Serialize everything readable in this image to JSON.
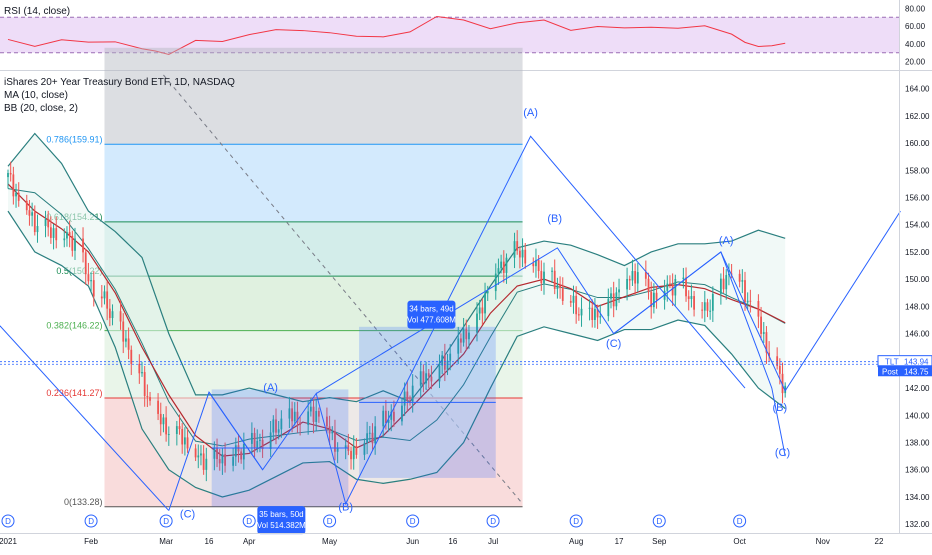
{
  "rsi_pane": {
    "title": "RSI (14, close)",
    "ticks": [
      "80.00",
      "60.00",
      "40.00",
      "20.00"
    ],
    "tick_values": [
      80,
      60,
      40,
      20
    ],
    "upper_band": 70,
    "lower_band": 30,
    "line_color": "#f23645",
    "band_fill": "#e3c7f3"
  },
  "main_pane": {
    "legend": [
      "iShares 20+ Year Treasury Bond ETF, 1D, NASDAQ",
      "MA (10, close)",
      "BB (20, close, 2)"
    ],
    "price_ticks": [
      "164.00",
      "162.00",
      "160.00",
      "158.00",
      "156.00",
      "154.00",
      "152.00",
      "150.00",
      "148.00",
      "146.00",
      "144.00",
      "142.00",
      "140.00",
      "138.00",
      "136.00",
      "134.00",
      "132.00"
    ],
    "price_tick_values": [
      164,
      162,
      160,
      158,
      156,
      154,
      152,
      150,
      148,
      146,
      144,
      142,
      140,
      138,
      136,
      134,
      132
    ],
    "date_ticks": [
      "2021",
      "Feb",
      "Mar",
      "16",
      "Apr",
      "May",
      "Jun",
      "16",
      "Jul",
      "Aug",
      "17",
      "Sep",
      "Oct",
      "Nov",
      "22"
    ],
    "last_price_badge": {
      "label": "TLT",
      "value": "143.94",
      "color": "#2962ff"
    },
    "post_badge": {
      "label": "Post",
      "value": "143.75",
      "color": "#2962ff"
    },
    "colors": {
      "up": "#26a69a",
      "down": "#ef5350",
      "ma": "#b5292f",
      "bb": "#2a7f7f",
      "bb_fill": "#e6f4f1",
      "drawing": "#2962ff",
      "wave_label": "#2962ff"
    }
  },
  "fibonacci": {
    "levels": [
      {
        "label": "0.786(159.91)",
        "ratio": 0.786,
        "price": 159.91,
        "color": "#2196f3"
      },
      {
        "label": "0.618(154.21)",
        "ratio": 0.618,
        "price": 154.21,
        "color": "#1b8d54"
      },
      {
        "label": "0.5(150.22)",
        "ratio": 0.5,
        "price": 150.22,
        "color": "#1b8d54"
      },
      {
        "label": "0.382(146.22)",
        "ratio": 0.382,
        "price": 146.22,
        "color": "#4caf50"
      },
      {
        "label": "0.236(141.27)",
        "ratio": 0.236,
        "price": 141.27,
        "color": "#e53935"
      },
      {
        "label": "0(133.28)",
        "ratio": 0,
        "price": 133.28,
        "color": "#555555"
      }
    ],
    "top_price": 167.0
  },
  "measure_boxes": [
    {
      "line1": "35 bars, 50d",
      "line2": "Vol 514.382M"
    },
    {
      "line1": "34 bars, 49d",
      "line2": "Vol 477.608M"
    }
  ],
  "wave_labels": [
    "(A)",
    "(B)",
    "(C)",
    "(A)",
    "(B)",
    "(C)",
    "(A)",
    "(B)",
    "(C)",
    "(B)",
    "(C)"
  ],
  "dividend_marker": "D",
  "chart_data": {
    "type": "candlestick",
    "ylim": [
      131.5,
      165.0
    ],
    "x_range_days": [
      -2,
      356
    ],
    "date_axis": {
      "labels": [
        "2021",
        "Feb",
        "Mar",
        "16",
        "Apr",
        "May",
        "Jun",
        "16",
        "Jul",
        "Aug",
        "17",
        "Sep",
        "Oct",
        "Nov",
        "22"
      ],
      "day_of_year": [
        0,
        31,
        59,
        75,
        90,
        120,
        151,
        166,
        181,
        212,
        228,
        243,
        273,
        304,
        325
      ]
    },
    "close_series": {
      "x": [
        0,
        5,
        10,
        15,
        20,
        25,
        30,
        35,
        40,
        45,
        50,
        55,
        60,
        65,
        70,
        75,
        80,
        85,
        90,
        95,
        100,
        105,
        110,
        115,
        120,
        125,
        130,
        135,
        140,
        145,
        150,
        155,
        160,
        165,
        170,
        175,
        180,
        185,
        190,
        195,
        200,
        205,
        210,
        215,
        220,
        225,
        230,
        235,
        240,
        245,
        250,
        255,
        260,
        265,
        270,
        275,
        280,
        285,
        290
      ],
      "y": [
        157.5,
        155.5,
        154.2,
        153.6,
        153.3,
        152.8,
        150.0,
        148.8,
        147.0,
        145.0,
        142.5,
        140.0,
        139.0,
        138.5,
        137.0,
        136.7,
        136.9,
        137.3,
        137.8,
        138.3,
        139.2,
        140.0,
        139.8,
        140.3,
        138.8,
        137.0,
        137.6,
        138.6,
        139.5,
        140.5,
        141.6,
        142.8,
        143.4,
        144.4,
        146.0,
        147.0,
        150.0,
        151.3,
        152.2,
        151.5,
        150.2,
        149.6,
        148.4,
        147.3,
        147.6,
        148.5,
        149.8,
        150.6,
        148.6,
        149.4,
        149.8,
        148.6,
        147.8,
        149.0,
        151.0,
        149.0,
        147.0,
        144.0,
        142.0
      ]
    },
    "ma10": {
      "x": [
        0,
        10,
        20,
        30,
        40,
        50,
        60,
        70,
        80,
        90,
        100,
        110,
        120,
        130,
        140,
        150,
        160,
        170,
        180,
        190,
        200,
        210,
        220,
        230,
        240,
        250,
        260,
        270,
        280,
        290
      ],
      "y": [
        157.0,
        155.0,
        153.7,
        152.0,
        149.0,
        145.0,
        141.5,
        138.5,
        137.0,
        137.2,
        138.3,
        139.5,
        139.0,
        137.6,
        138.5,
        140.5,
        142.5,
        144.5,
        147.5,
        149.5,
        150.0,
        149.3,
        148.0,
        148.7,
        149.4,
        149.6,
        149.3,
        148.5,
        147.8,
        146.8
      ]
    },
    "bb_upper": {
      "x": [
        0,
        10,
        20,
        30,
        40,
        50,
        60,
        70,
        80,
        90,
        100,
        110,
        120,
        130,
        140,
        150,
        160,
        170,
        180,
        190,
        200,
        210,
        220,
        230,
        240,
        250,
        260,
        270,
        280,
        290
      ],
      "y": [
        158.3,
        160.7,
        158.5,
        155.0,
        153.5,
        151.6,
        146.0,
        141.5,
        141.5,
        142.0,
        141.5,
        141.0,
        141.3,
        141.0,
        141.8,
        141.0,
        143.5,
        146.5,
        149.5,
        152.3,
        152.8,
        152.5,
        151.8,
        151.0,
        152.0,
        152.6,
        152.6,
        152.8,
        153.6,
        153.0
      ]
    },
    "bb_lower": {
      "x": [
        0,
        10,
        20,
        30,
        40,
        50,
        60,
        70,
        80,
        90,
        100,
        110,
        120,
        130,
        140,
        150,
        160,
        170,
        180,
        190,
        200,
        210,
        220,
        230,
        240,
        250,
        260,
        270,
        280,
        290
      ],
      "y": [
        155.0,
        152.0,
        151.0,
        149.5,
        145.0,
        139.0,
        136.0,
        134.7,
        134.0,
        134.5,
        135.5,
        136.5,
        136.6,
        135.3,
        135.0,
        135.3,
        135.8,
        138.0,
        142.0,
        145.8,
        146.5,
        146.0,
        145.5,
        146.3,
        146.3,
        147.0,
        146.6,
        144.5,
        142.0,
        140.5
      ]
    },
    "rsi": {
      "x": [
        0,
        10,
        20,
        30,
        40,
        50,
        55,
        60,
        70,
        80,
        90,
        100,
        110,
        120,
        130,
        140,
        150,
        160,
        170,
        180,
        190,
        200,
        210,
        220,
        230,
        240,
        250,
        260,
        270,
        275,
        280,
        285,
        290
      ],
      "y": [
        45,
        40,
        43,
        40,
        45,
        35,
        34,
        25,
        45,
        45,
        48,
        55,
        58,
        52,
        46,
        50,
        55,
        68,
        67,
        60,
        62,
        65,
        58,
        60,
        55,
        60,
        60,
        58,
        50,
        40,
        40,
        36,
        40
      ]
    },
    "dividend_days": [
      0,
      31,
      59,
      90,
      120,
      151,
      181,
      212,
      243,
      273
    ]
  }
}
